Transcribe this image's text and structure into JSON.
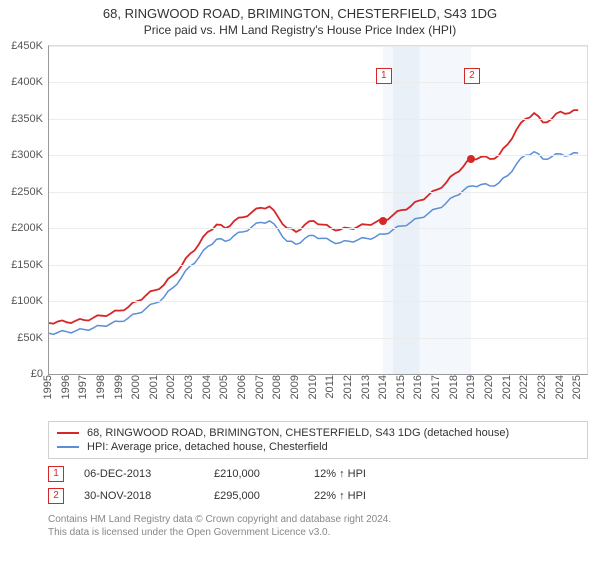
{
  "title": "68, RINGWOOD ROAD, BRIMINGTON, CHESTERFIELD, S43 1DG",
  "subtitle": "Price paid vs. HM Land Registry's House Price Index (HPI)",
  "chart": {
    "type": "line",
    "xlim": [
      1995,
      2025.5
    ],
    "ylim": [
      0,
      450000
    ],
    "ytick_step": 50000,
    "ytick_labels": [
      "£0",
      "£50K",
      "£100K",
      "£150K",
      "£200K",
      "£250K",
      "£300K",
      "£350K",
      "£400K",
      "£450K"
    ],
    "xticks": [
      1995,
      1996,
      1997,
      1998,
      1999,
      2000,
      2001,
      2002,
      2003,
      2004,
      2005,
      2006,
      2007,
      2008,
      2009,
      2010,
      2011,
      2012,
      2013,
      2014,
      2015,
      2016,
      2017,
      2018,
      2019,
      2020,
      2021,
      2022,
      2023,
      2024,
      2025
    ],
    "background_color": "#ffffff",
    "grid_color": "#ececec",
    "axis_color": "#999999",
    "shade_ranges": [
      {
        "x0": 2013.92,
        "x1": 2018.92,
        "color": "#f4f7fb"
      },
      {
        "x0": 2014.5,
        "x1": 2016.0,
        "color": "#eaf0f8"
      }
    ],
    "series": [
      {
        "id": "red",
        "label": "68, RINGWOOD ROAD, BRIMINGTON, CHESTERFIELD, S43 1DG (detached house)",
        "color": "#d62728",
        "stroke_width": 1.8,
        "values": [
          [
            1995,
            70000
          ],
          [
            1995.5,
            72000
          ],
          [
            1996,
            71000
          ],
          [
            1996.5,
            73000
          ],
          [
            1997,
            74000
          ],
          [
            1997.5,
            77000
          ],
          [
            1998,
            80000
          ],
          [
            1998.5,
            83000
          ],
          [
            1999,
            87000
          ],
          [
            1999.5,
            92000
          ],
          [
            2000,
            100000
          ],
          [
            2000.5,
            108000
          ],
          [
            2001,
            115000
          ],
          [
            2001.5,
            122000
          ],
          [
            2002,
            135000
          ],
          [
            2002.5,
            148000
          ],
          [
            2003,
            165000
          ],
          [
            2003.5,
            178000
          ],
          [
            2004,
            195000
          ],
          [
            2004.5,
            205000
          ],
          [
            2005,
            200000
          ],
          [
            2005.5,
            210000
          ],
          [
            2006,
            215000
          ],
          [
            2006.5,
            222000
          ],
          [
            2007,
            228000
          ],
          [
            2007.5,
            230000
          ],
          [
            2008,
            215000
          ],
          [
            2008.5,
            200000
          ],
          [
            2009,
            195000
          ],
          [
            2009.5,
            205000
          ],
          [
            2010,
            210000
          ],
          [
            2010.5,
            205000
          ],
          [
            2011,
            200000
          ],
          [
            2011.5,
            198000
          ],
          [
            2012,
            200000
          ],
          [
            2012.5,
            202000
          ],
          [
            2013,
            205000
          ],
          [
            2013.5,
            208000
          ],
          [
            2013.92,
            210000
          ],
          [
            2014.5,
            218000
          ],
          [
            2015,
            225000
          ],
          [
            2015.5,
            230000
          ],
          [
            2016,
            238000
          ],
          [
            2016.5,
            245000
          ],
          [
            2017,
            253000
          ],
          [
            2017.5,
            262000
          ],
          [
            2018,
            275000
          ],
          [
            2018.5,
            285000
          ],
          [
            2018.92,
            295000
          ],
          [
            2019.5,
            298000
          ],
          [
            2020,
            295000
          ],
          [
            2020.5,
            300000
          ],
          [
            2021,
            315000
          ],
          [
            2021.5,
            335000
          ],
          [
            2022,
            350000
          ],
          [
            2022.5,
            358000
          ],
          [
            2023,
            345000
          ],
          [
            2023.5,
            350000
          ],
          [
            2024,
            360000
          ],
          [
            2024.5,
            358000
          ],
          [
            2025,
            362000
          ]
        ]
      },
      {
        "id": "blue",
        "label": "HPI: Average price, detached house, Chesterfield",
        "color": "#5b8fd6",
        "stroke_width": 1.5,
        "values": [
          [
            1995,
            56000
          ],
          [
            1995.5,
            57000
          ],
          [
            1996,
            58000
          ],
          [
            1996.5,
            59000
          ],
          [
            1997,
            61000
          ],
          [
            1997.5,
            63000
          ],
          [
            1998,
            66000
          ],
          [
            1998.5,
            69000
          ],
          [
            1999,
            72000
          ],
          [
            1999.5,
            77000
          ],
          [
            2000,
            83000
          ],
          [
            2000.5,
            90000
          ],
          [
            2001,
            97000
          ],
          [
            2001.5,
            105000
          ],
          [
            2002,
            118000
          ],
          [
            2002.5,
            132000
          ],
          [
            2003,
            148000
          ],
          [
            2003.5,
            160000
          ],
          [
            2004,
            175000
          ],
          [
            2004.5,
            185000
          ],
          [
            2005,
            182000
          ],
          [
            2005.5,
            190000
          ],
          [
            2006,
            195000
          ],
          [
            2006.5,
            202000
          ],
          [
            2007,
            208000
          ],
          [
            2007.5,
            210000
          ],
          [
            2008,
            198000
          ],
          [
            2008.5,
            182000
          ],
          [
            2009,
            178000
          ],
          [
            2009.5,
            186000
          ],
          [
            2010,
            190000
          ],
          [
            2010.5,
            186000
          ],
          [
            2011,
            182000
          ],
          [
            2011.5,
            180000
          ],
          [
            2012,
            182000
          ],
          [
            2012.5,
            184000
          ],
          [
            2013,
            186000
          ],
          [
            2013.5,
            188000
          ],
          [
            2014,
            192000
          ],
          [
            2014.5,
            198000
          ],
          [
            2015,
            203000
          ],
          [
            2015.5,
            208000
          ],
          [
            2016,
            214000
          ],
          [
            2016.5,
            220000
          ],
          [
            2017,
            227000
          ],
          [
            2017.5,
            234000
          ],
          [
            2018,
            244000
          ],
          [
            2018.5,
            252000
          ],
          [
            2019,
            258000
          ],
          [
            2019.5,
            260000
          ],
          [
            2020,
            258000
          ],
          [
            2020.5,
            262000
          ],
          [
            2021,
            272000
          ],
          [
            2021.5,
            288000
          ],
          [
            2022,
            300000
          ],
          [
            2022.5,
            305000
          ],
          [
            2023,
            295000
          ],
          [
            2023.5,
            298000
          ],
          [
            2024,
            302000
          ],
          [
            2024.5,
            300000
          ],
          [
            2025,
            303000
          ]
        ]
      }
    ],
    "markers": [
      {
        "id": "1",
        "x": 2013.92,
        "y_box": 420000,
        "color": "#d62728"
      },
      {
        "id": "2",
        "x": 2018.92,
        "y_box": 420000,
        "color": "#d62728"
      }
    ],
    "sale_points": [
      {
        "x": 2013.92,
        "y": 210000,
        "color": "#d62728"
      },
      {
        "x": 2018.92,
        "y": 295000,
        "color": "#d62728"
      }
    ]
  },
  "legend": {
    "rows": [
      {
        "color": "#d62728",
        "label": "68, RINGWOOD ROAD, BRIMINGTON, CHESTERFIELD, S43 1DG (detached house)"
      },
      {
        "color": "#5b8fd6",
        "label": "HPI: Average price, detached house, Chesterfield"
      }
    ]
  },
  "sales": [
    {
      "num": "1",
      "date": "06-DEC-2013",
      "price": "£210,000",
      "delta": "12% ↑ HPI",
      "box_color": "#d62728"
    },
    {
      "num": "2",
      "date": "30-NOV-2018",
      "price": "£295,000",
      "delta": "22% ↑ HPI",
      "box_color": "#d62728"
    }
  ],
  "footer_line1": "Contains HM Land Registry data © Crown copyright and database right 2024.",
  "footer_line2": "This data is licensed under the Open Government Licence v3.0."
}
